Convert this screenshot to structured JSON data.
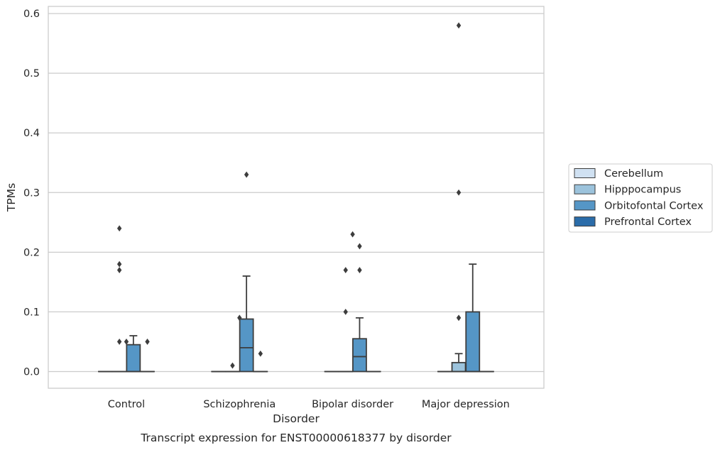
{
  "chart_data": {
    "type": "boxplot",
    "caption": "Transcript expression for ENST00000618377 by disorder",
    "xlabel": "Disorder",
    "ylabel": "TPMs",
    "ylim": [
      -0.028,
      0.612
    ],
    "yticks": [
      0.0,
      0.1,
      0.2,
      0.3,
      0.4,
      0.5,
      0.6
    ],
    "ytick_labels": [
      "0.0",
      "0.1",
      "0.2",
      "0.3",
      "0.4",
      "0.5",
      "0.6"
    ],
    "grid": "horizontal",
    "legend_position": "right",
    "categories": [
      "Control",
      "Schizophrenia",
      "Bipolar disorder",
      "Major depression"
    ],
    "series": [
      {
        "name": "Cerebellum",
        "color": "#d0e1f2",
        "boxes": [
          {
            "q1": 0,
            "median": 0,
            "q3": 0,
            "whisker_low": 0,
            "whisker_high": 0,
            "outliers": []
          },
          {
            "q1": 0,
            "median": 0,
            "q3": 0,
            "whisker_low": 0,
            "whisker_high": 0,
            "outliers": []
          },
          {
            "q1": 0,
            "median": 0,
            "q3": 0,
            "whisker_low": 0,
            "whisker_high": 0,
            "outliers": []
          },
          {
            "q1": 0,
            "median": 0,
            "q3": 0,
            "whisker_low": 0,
            "whisker_high": 0,
            "outliers": []
          }
        ]
      },
      {
        "name": "Hipppocampus",
        "color": "#9cc3dc",
        "boxes": [
          {
            "q1": 0,
            "median": 0,
            "q3": 0,
            "whisker_low": 0,
            "whisker_high": 0,
            "outliers": [
              0.05,
              0.17,
              0.18,
              0.24
            ]
          },
          {
            "q1": 0,
            "median": 0,
            "q3": 0,
            "whisker_low": 0,
            "whisker_high": 0,
            "outliers": [
              0.01
            ]
          },
          {
            "q1": 0,
            "median": 0,
            "q3": 0,
            "whisker_low": 0,
            "whisker_high": 0,
            "outliers": [
              0.1,
              0.17
            ]
          },
          {
            "q1": 0,
            "median": 0,
            "q3": 0.015,
            "whisker_low": 0,
            "whisker_high": 0.03,
            "outliers": [
              0.09,
              0.3,
              0.58
            ]
          }
        ]
      },
      {
        "name": "Orbitofontal Cortex",
        "color": "#5596c6",
        "boxes": [
          {
            "q1": 0,
            "median": 0,
            "q3": 0.045,
            "whisker_low": 0,
            "whisker_high": 0.06,
            "outliers": []
          },
          {
            "q1": 0,
            "median": 0.04,
            "q3": 0.088,
            "whisker_low": 0,
            "whisker_high": 0.16,
            "outliers": [
              0.33
            ]
          },
          {
            "q1": 0,
            "median": 0.025,
            "q3": 0.055,
            "whisker_low": 0,
            "whisker_high": 0.09,
            "outliers": [
              0.17,
              0.21
            ]
          },
          {
            "q1": 0,
            "median": 0,
            "q3": 0.1,
            "whisker_low": 0,
            "whisker_high": 0.18,
            "outliers": []
          }
        ]
      },
      {
        "name": "Prefrontal Cortex",
        "color": "#2b6ca9",
        "boxes": [
          {
            "q1": 0,
            "median": 0,
            "q3": 0,
            "whisker_low": 0,
            "whisker_high": 0,
            "outliers": [
              0.05
            ]
          },
          {
            "q1": 0,
            "median": 0,
            "q3": 0,
            "whisker_low": 0,
            "whisker_high": 0,
            "outliers": [
              0.03
            ]
          },
          {
            "q1": 0,
            "median": 0,
            "q3": 0,
            "whisker_low": 0,
            "whisker_high": 0,
            "outliers": []
          },
          {
            "q1": 0,
            "median": 0,
            "q3": 0,
            "whisker_low": 0,
            "whisker_high": 0,
            "outliers": []
          }
        ]
      }
    ],
    "hue_outliers": [
      {
        "category": 0,
        "offset_hue": 1.5,
        "values": [
          0.05
        ]
      },
      {
        "category": 1,
        "offset_hue": 1.5,
        "values": [
          0.09
        ]
      },
      {
        "category": 2,
        "offset_hue": 1.5,
        "values": [
          0.23
        ]
      }
    ]
  }
}
